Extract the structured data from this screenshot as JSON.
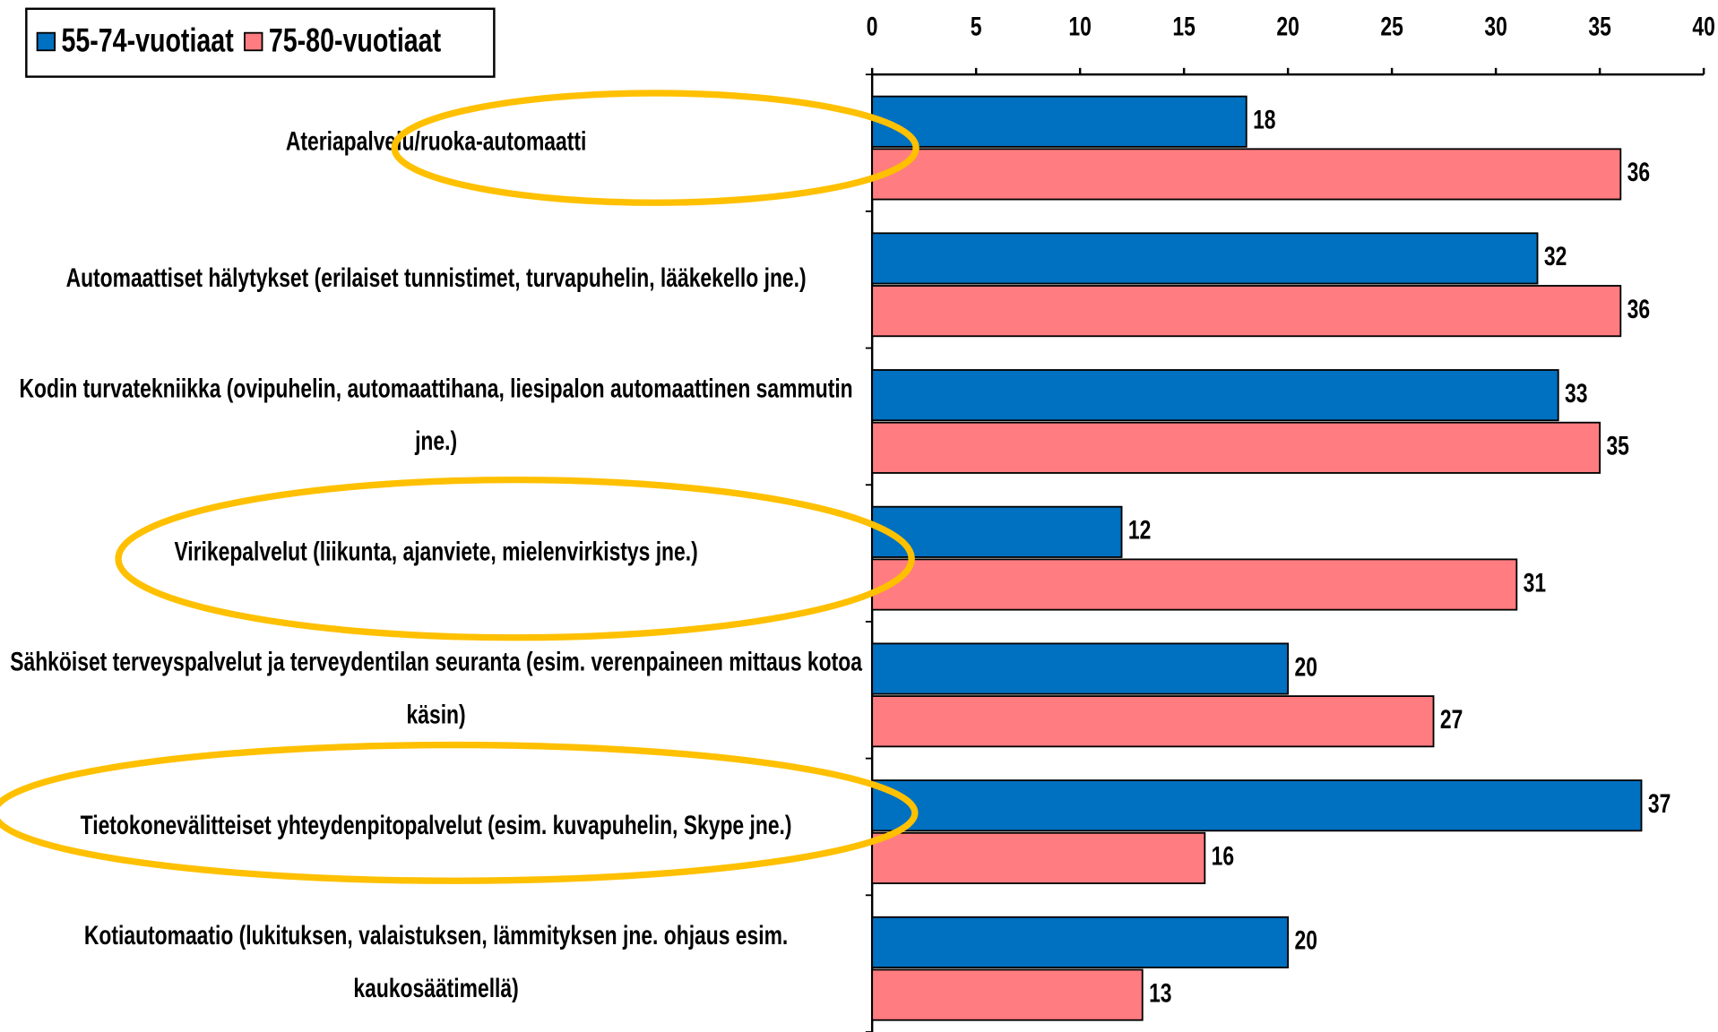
{
  "chart_data": {
    "type": "bar",
    "orientation": "horizontal",
    "categories": [
      "Ateriapalvelu/ruoka-automaatti",
      "Automaattiset hälytykset (erilaiset tunnistimet, turvapuhelin, lääkekello jne.)",
      "Kodin turvatekniikka (ovipuhelin, automaattihana, liesipalon automaattinen sammutin jne.)",
      "Virikepalvelut (liikunta, ajanviete, mielenvirkistys jne.)",
      "Sähköiset terveyspalvelut ja terveydentilan seuranta (esim. verenpaineen mittaus kotoa käsin)",
      "Tietokonevälitteiset yhteydenpitopalvelut (esim. kuvapuhelin, Skype jne.)",
      "Kotiautomaatio (lukituksen, valaistuksen, lämmityksen jne. ohjaus esim. kaukosäätimellä)"
    ],
    "series": [
      {
        "name": "55-74-vuotiaat",
        "color": "#0070c0",
        "values": [
          18,
          32,
          33,
          12,
          20,
          37,
          20
        ]
      },
      {
        "name": "75-80-vuotiaat",
        "color": "#ff7c80",
        "values": [
          36,
          36,
          35,
          31,
          27,
          16,
          13
        ]
      }
    ],
    "xlim": [
      0,
      40
    ],
    "xticks": [
      0,
      5,
      10,
      15,
      20,
      25,
      30,
      35,
      40
    ],
    "grid": false,
    "legend": "top-left"
  }
}
